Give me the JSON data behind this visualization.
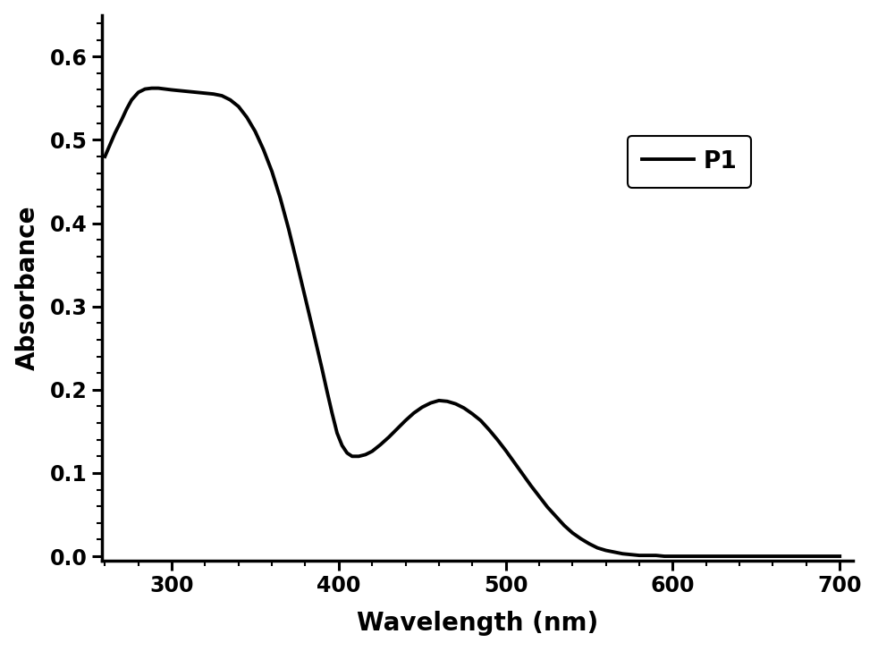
{
  "xlim": [
    258,
    708
  ],
  "ylim": [
    -0.005,
    0.65
  ],
  "xticks": [
    300,
    400,
    500,
    600,
    700
  ],
  "yticks": [
    0.0,
    0.1,
    0.2,
    0.3,
    0.4,
    0.5,
    0.6
  ],
  "xlabel": "Wavelength (nm)",
  "ylabel": "Absorbance",
  "legend_label": "P1",
  "line_color": "#000000",
  "line_width": 2.8,
  "background_color": "#ffffff",
  "curve_points": {
    "x": [
      260,
      263,
      266,
      270,
      273,
      276,
      280,
      284,
      288,
      292,
      296,
      300,
      305,
      310,
      315,
      320,
      325,
      330,
      335,
      340,
      345,
      350,
      355,
      360,
      365,
      370,
      375,
      380,
      385,
      390,
      393,
      396,
      399,
      402,
      405,
      408,
      412,
      416,
      420,
      425,
      430,
      435,
      440,
      445,
      450,
      455,
      460,
      465,
      470,
      475,
      480,
      485,
      490,
      495,
      500,
      505,
      510,
      515,
      520,
      525,
      530,
      535,
      540,
      545,
      550,
      555,
      560,
      565,
      570,
      575,
      580,
      585,
      590,
      595,
      600,
      610,
      620,
      650,
      700
    ],
    "y": [
      0.48,
      0.494,
      0.508,
      0.524,
      0.537,
      0.548,
      0.557,
      0.561,
      0.562,
      0.562,
      0.561,
      0.56,
      0.559,
      0.558,
      0.557,
      0.556,
      0.555,
      0.553,
      0.548,
      0.54,
      0.527,
      0.51,
      0.488,
      0.462,
      0.43,
      0.393,
      0.352,
      0.31,
      0.268,
      0.225,
      0.198,
      0.172,
      0.148,
      0.133,
      0.124,
      0.12,
      0.12,
      0.122,
      0.126,
      0.134,
      0.143,
      0.153,
      0.163,
      0.172,
      0.179,
      0.184,
      0.187,
      0.186,
      0.183,
      0.178,
      0.171,
      0.163,
      0.152,
      0.14,
      0.127,
      0.113,
      0.099,
      0.085,
      0.072,
      0.059,
      0.048,
      0.037,
      0.028,
      0.021,
      0.015,
      0.01,
      0.007,
      0.005,
      0.003,
      0.002,
      0.001,
      0.001,
      0.001,
      0.0,
      0.0,
      0.0,
      0.0,
      0.0,
      0.0
    ]
  }
}
